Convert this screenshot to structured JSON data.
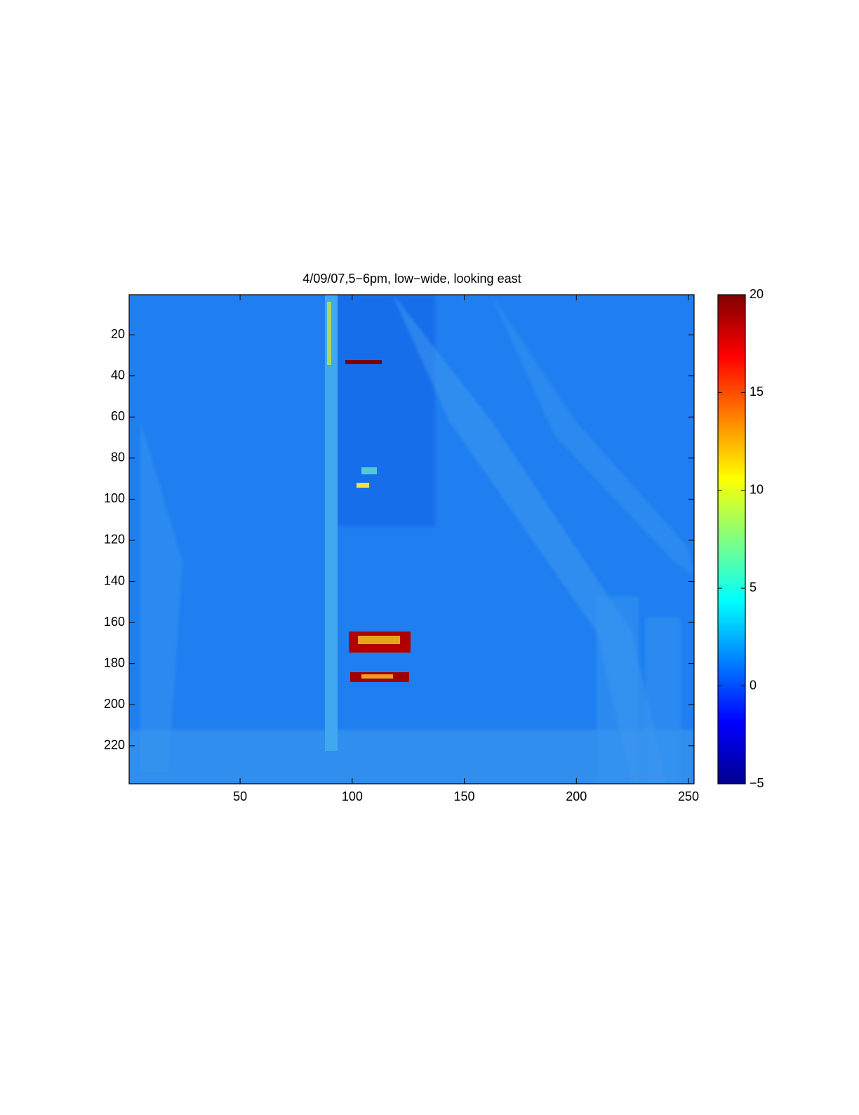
{
  "chart_data": {
    "type": "image",
    "title": "4/09/07,5−6pm, low−wide, looking east",
    "colormap": "jet",
    "xlim": [
      0.5,
      252.5
    ],
    "xticks": [
      50,
      100,
      150,
      200,
      250
    ],
    "ylim": [
      0.5,
      238.5
    ],
    "yticks": [
      20,
      40,
      60,
      80,
      100,
      120,
      140,
      160,
      180,
      200,
      220
    ],
    "y_reversed": true,
    "clim": [
      -5,
      20
    ],
    "cticks": [
      {
        "value": -5,
        "label": "−5"
      },
      0,
      5,
      10,
      15,
      20
    ]
  }
}
